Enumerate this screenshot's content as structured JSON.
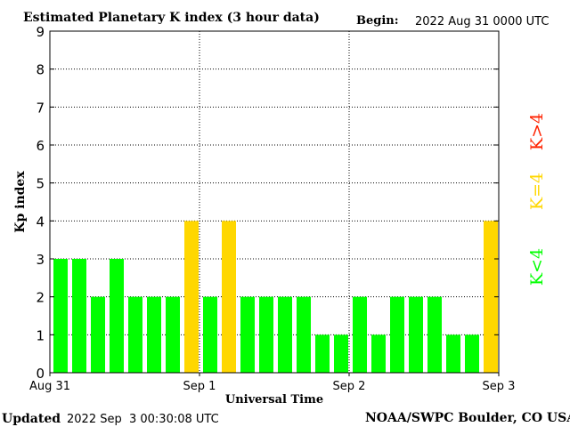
{
  "header": {
    "title": "Estimated Planetary K index (3 hour data)",
    "begin_label": "Begin:",
    "begin_value": "2022 Aug 31 0000 UTC"
  },
  "footer": {
    "updated_label": "Updated",
    "updated_value": "2022 Sep  3 00:30:08 UTC",
    "source": "NOAA/SWPC Boulder, CO USA"
  },
  "legend": [
    {
      "label": "K<4",
      "color": "#00ff00"
    },
    {
      "label": "K=4",
      "color": "#ffd700"
    },
    {
      "label": "K>4",
      "color": "#ff2200"
    }
  ],
  "chart_data": {
    "type": "bar",
    "title": "Estimated Planetary K index (3 hour data)",
    "xlabel": "Universal Time",
    "ylabel": "Kp index",
    "ylim": [
      0,
      9
    ],
    "yticks": [
      0,
      1,
      2,
      3,
      4,
      5,
      6,
      7,
      8,
      9
    ],
    "xtick_labels": [
      "Aug 31",
      "Sep 1",
      "Sep 2",
      "Sep 3"
    ],
    "grid": true,
    "bars_per_day": 8,
    "days": 3,
    "values": [
      3,
      3,
      2,
      3,
      2,
      2,
      2,
      4,
      2,
      4,
      2,
      2,
      2,
      2,
      1,
      1,
      2,
      1,
      2,
      2,
      2,
      1,
      1,
      4
    ],
    "colors": {
      "low": "#00ff00",
      "moderate": "#ffd700",
      "high": "#ff2200"
    }
  }
}
